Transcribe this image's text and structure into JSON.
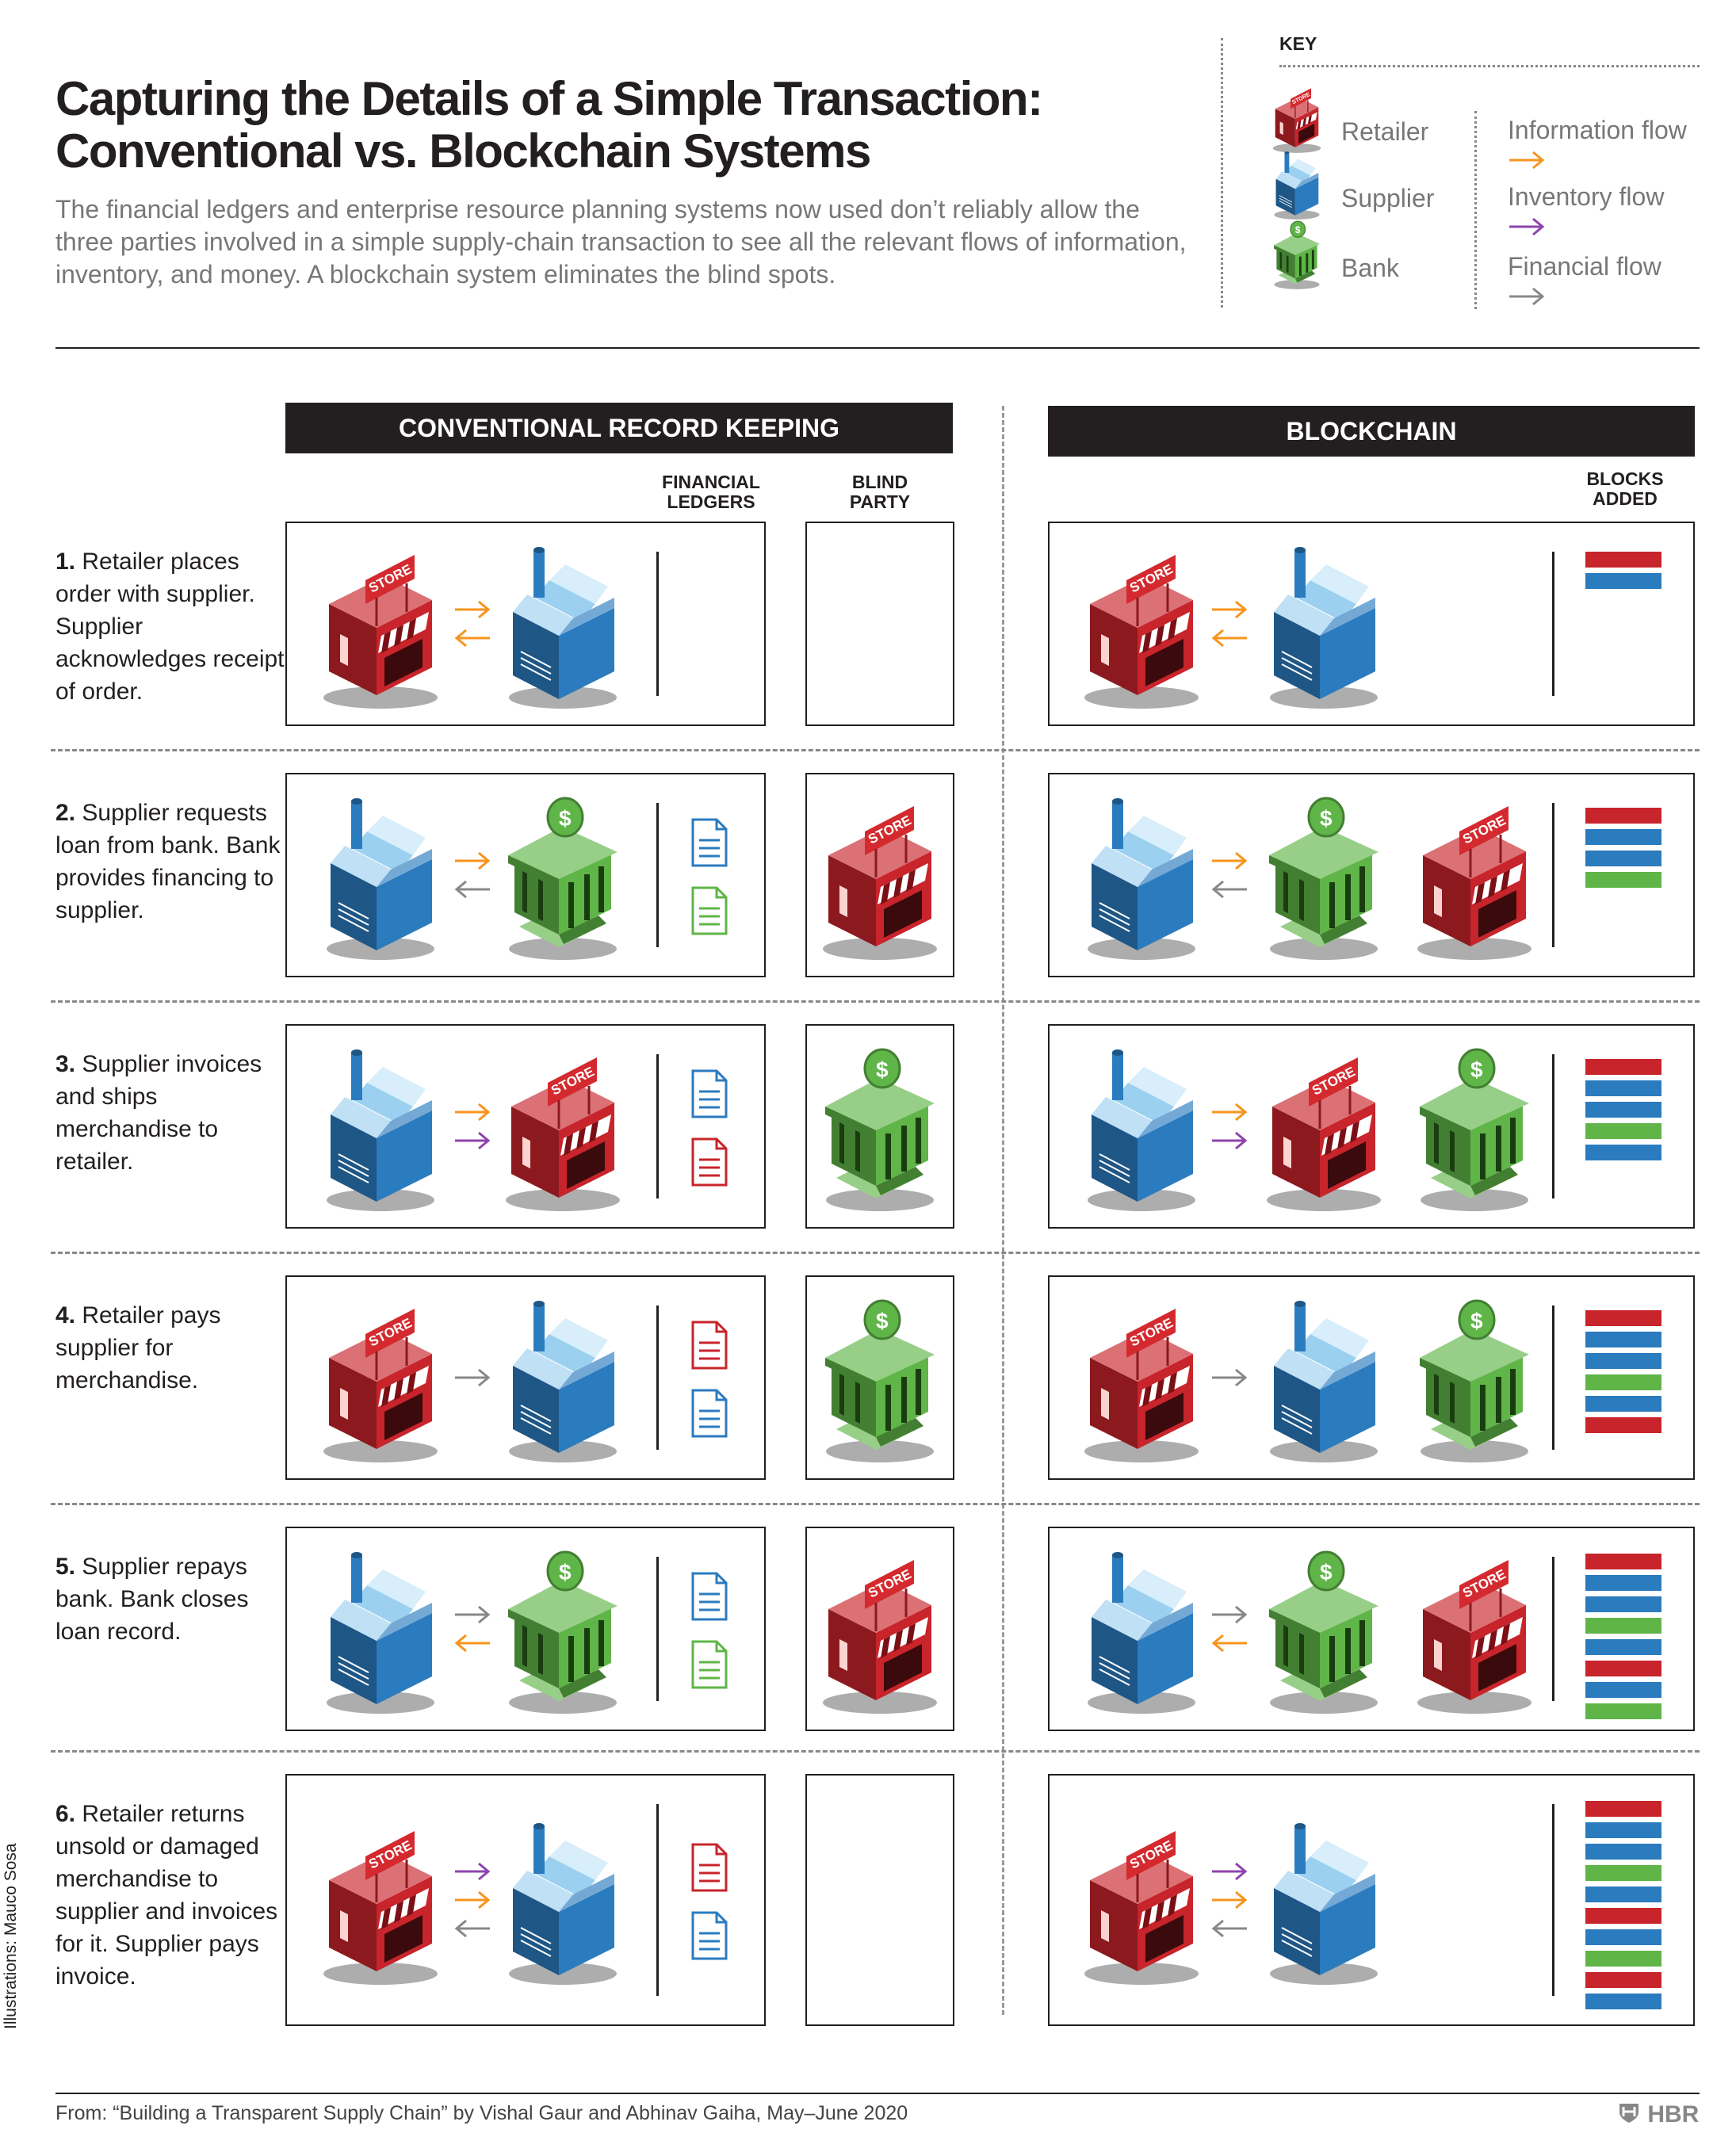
{
  "title_line1": "Capturing the Details of a Simple Transaction:",
  "title_line2": "Conventional vs. Blockchain Systems",
  "subtitle": "The financial ledgers and enterprise resource planning systems now used don’t reliably allow the three parties involved in a simple supply-chain transaction to see all the relevant flows of information, inventory, and money. A blockchain system eliminates the blind spots.",
  "key": {
    "title": "KEY",
    "parties": [
      {
        "label": "Retailer",
        "icon": "store-icon",
        "color": "#c8242b"
      },
      {
        "label": "Supplier",
        "icon": "factory-icon",
        "color": "#2b7bbf"
      },
      {
        "label": "Bank",
        "icon": "bank-icon",
        "color": "#5fb548"
      }
    ],
    "flows": [
      {
        "label": "Information flow",
        "color": "#f7941d"
      },
      {
        "label": "Inventory flow",
        "color": "#8e44ad"
      },
      {
        "label": "Financial flow",
        "color": "#888888"
      }
    ]
  },
  "headers": {
    "conventional": "CONVENTIONAL RECORD KEEPING",
    "blockchain": "BLOCKCHAIN",
    "ledgers_line1": "FINANCIAL",
    "ledgers_line2": "LEDGERS",
    "blind_line1": "BLIND",
    "blind_line2": "PARTY",
    "blocks_line1": "BLOCKS",
    "blocks_line2": "ADDED"
  },
  "icon_text": "STORE",
  "colors": {
    "retailer": "#c8242b",
    "supplier": "#2b7bbf",
    "bank": "#5fb548",
    "info": "#f7941d",
    "inventory": "#8e44ad",
    "financial": "#888888"
  },
  "steps": [
    {
      "num": "1.",
      "text": "Retailer places order with supplier. Supplier acknowledges receipt of order.",
      "left": "retailer",
      "right": "supplier",
      "arrows": [
        {
          "type": "info",
          "dir": "right"
        },
        {
          "type": "info",
          "dir": "left"
        }
      ],
      "ledgers": [],
      "blind": null,
      "blocks": [
        "retailer",
        "supplier"
      ]
    },
    {
      "num": "2.",
      "text": "Supplier requests loan from bank. Bank provides financing to supplier.",
      "left": "supplier",
      "right": "bank",
      "arrows": [
        {
          "type": "info",
          "dir": "right"
        },
        {
          "type": "financial",
          "dir": "left"
        }
      ],
      "ledgers": [
        "supplier",
        "bank"
      ],
      "blind": "retailer",
      "blocks": [
        "retailer",
        "supplier",
        "supplier",
        "bank"
      ]
    },
    {
      "num": "3.",
      "text": "Supplier invoices and ships merchandise to retailer.",
      "left": "supplier",
      "right": "retailer",
      "arrows": [
        {
          "type": "info",
          "dir": "right"
        },
        {
          "type": "inventory",
          "dir": "right"
        }
      ],
      "ledgers": [
        "supplier",
        "retailer"
      ],
      "blind": "bank",
      "blocks": [
        "retailer",
        "supplier",
        "supplier",
        "bank",
        "supplier"
      ]
    },
    {
      "num": "4.",
      "text": "Retailer pays supplier for merchandise.",
      "left": "retailer",
      "right": "supplier",
      "arrows": [
        {
          "type": "financial",
          "dir": "right"
        }
      ],
      "ledgers": [
        "retailer",
        "supplier"
      ],
      "blind": "bank",
      "blocks": [
        "retailer",
        "supplier",
        "supplier",
        "bank",
        "supplier",
        "retailer"
      ]
    },
    {
      "num": "5.",
      "text": "Supplier repays bank. Bank closes loan record.",
      "left": "supplier",
      "right": "bank",
      "arrows": [
        {
          "type": "financial",
          "dir": "right"
        },
        {
          "type": "info",
          "dir": "left"
        }
      ],
      "ledgers": [
        "supplier",
        "bank"
      ],
      "blind": "retailer",
      "blocks": [
        "retailer",
        "supplier",
        "supplier",
        "bank",
        "supplier",
        "retailer",
        "supplier",
        "bank"
      ]
    },
    {
      "num": "6.",
      "text": "Retailer returns unsold or damaged merchandise to supplier and invoices for it. Supplier pays invoice.",
      "left": "retailer",
      "right": "supplier",
      "arrows": [
        {
          "type": "inventory",
          "dir": "right"
        },
        {
          "type": "info",
          "dir": "right"
        },
        {
          "type": "financial",
          "dir": "left"
        }
      ],
      "ledgers": [
        "retailer",
        "supplier"
      ],
      "blind": null,
      "blocks": [
        "retailer",
        "supplier",
        "supplier",
        "bank",
        "supplier",
        "retailer",
        "supplier",
        "bank",
        "retailer",
        "supplier"
      ]
    }
  ],
  "credit": "Illustrations: Mauco Sosa",
  "source": "From:  “Building a Transparent Supply Chain” by Vishal Gaur and Abhinav Gaiha, May–June 2020",
  "brand": "HBR"
}
